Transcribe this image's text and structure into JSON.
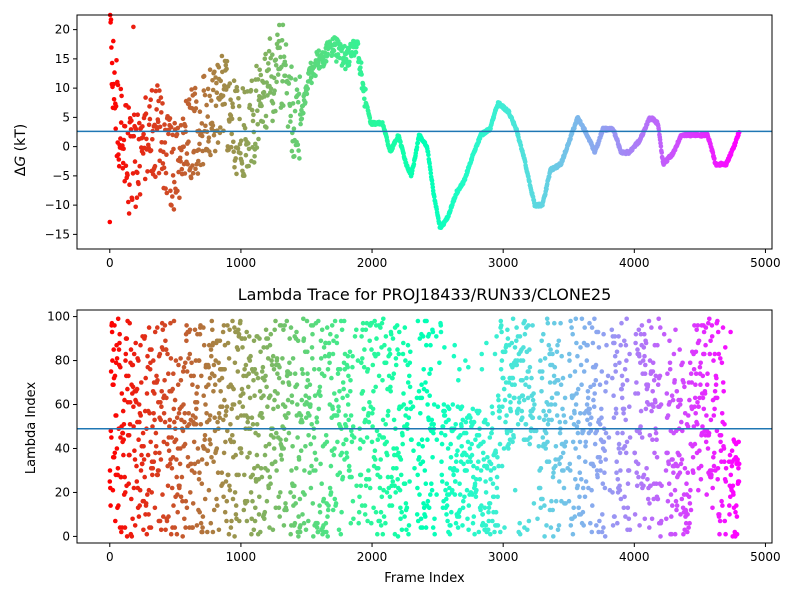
{
  "chart_data": [
    {
      "type": "scatter",
      "title": "",
      "xlabel": "",
      "ylabel": "ΔG (kT)",
      "ylabel_parts": {
        "symbol": "Δ",
        "var": "G",
        "unit": " (kT)"
      },
      "xlim": [
        -250,
        5050
      ],
      "ylim": [
        -17.5,
        22.5
      ],
      "xticks": [
        0,
        1000,
        2000,
        3000,
        4000,
        5000
      ],
      "xtick_labels": [
        "0",
        "1000",
        "2000",
        "3000",
        "4000",
        "5000"
      ],
      "yticks": [
        -15,
        -10,
        -5,
        0,
        5,
        10,
        15,
        20
      ],
      "ytick_labels": [
        "−15",
        "−10",
        "−5",
        "0",
        "5",
        "10",
        "15",
        "20"
      ],
      "hline": 2.6,
      "hline_color": "#1f77b4",
      "colormap": "rainbow",
      "grid": false,
      "n_frames": 4800,
      "x_range": [
        0,
        4800
      ],
      "trace_anchors": [
        [
          0,
          18
        ],
        [
          60,
          5
        ],
        [
          120,
          0
        ],
        [
          200,
          -3
        ],
        [
          280,
          1
        ],
        [
          380,
          3
        ],
        [
          470,
          -4
        ],
        [
          560,
          0
        ],
        [
          660,
          3
        ],
        [
          760,
          5
        ],
        [
          860,
          9
        ],
        [
          960,
          3
        ],
        [
          1060,
          2
        ],
        [
          1160,
          9
        ],
        [
          1260,
          13
        ],
        [
          1340,
          15
        ],
        [
          1400,
          3
        ],
        [
          1460,
          6
        ],
        [
          1520,
          12
        ],
        [
          1600,
          15
        ],
        [
          1700,
          17
        ],
        [
          1800,
          15
        ],
        [
          1880,
          18
        ],
        [
          1940,
          9
        ],
        [
          1990,
          4
        ],
        [
          2080,
          4
        ],
        [
          2140,
          -1
        ],
        [
          2200,
          2
        ],
        [
          2260,
          -3
        ],
        [
          2300,
          -5
        ],
        [
          2360,
          2
        ],
        [
          2420,
          0
        ],
        [
          2470,
          -8
        ],
        [
          2520,
          -14
        ],
        [
          2580,
          -12
        ],
        [
          2640,
          -8
        ],
        [
          2700,
          -6
        ],
        [
          2760,
          -2
        ],
        [
          2830,
          2
        ],
        [
          2900,
          3
        ],
        [
          2960,
          7.5
        ],
        [
          3040,
          6
        ],
        [
          3100,
          3
        ],
        [
          3160,
          -2
        ],
        [
          3240,
          -10
        ],
        [
          3300,
          -10
        ],
        [
          3360,
          -4
        ],
        [
          3440,
          -3
        ],
        [
          3520,
          2
        ],
        [
          3570,
          5
        ],
        [
          3640,
          2
        ],
        [
          3700,
          -1
        ],
        [
          3760,
          3
        ],
        [
          3840,
          3
        ],
        [
          3900,
          -1
        ],
        [
          3960,
          -1
        ],
        [
          4040,
          1
        ],
        [
          4120,
          5
        ],
        [
          4180,
          4
        ],
        [
          4220,
          -3
        ],
        [
          4300,
          -1
        ],
        [
          4360,
          2
        ],
        [
          4430,
          2
        ],
        [
          4560,
          2
        ],
        [
          4620,
          -3
        ],
        [
          4700,
          -3
        ],
        [
          4760,
          0
        ],
        [
          4800,
          2.5
        ]
      ],
      "trace_noise_by_segment": [
        {
          "x_end": 1450,
          "amplitude": 8
        },
        {
          "x_end": 1950,
          "amplitude": 2
        },
        {
          "x_end": 4800,
          "amplitude": 0.25
        }
      ]
    },
    {
      "type": "scatter",
      "title": "Lambda Trace for PROJ18433/RUN33/CLONE25",
      "xlabel": "Frame Index",
      "ylabel": "Lambda Index",
      "xlim": [
        -250,
        5050
      ],
      "ylim": [
        -3,
        103
      ],
      "xticks": [
        0,
        1000,
        2000,
        3000,
        4000,
        5000
      ],
      "xtick_labels": [
        "0",
        "1000",
        "2000",
        "3000",
        "4000",
        "5000"
      ],
      "yticks": [
        0,
        20,
        40,
        60,
        80,
        100
      ],
      "ytick_labels": [
        "0",
        "20",
        "40",
        "60",
        "80",
        "100"
      ],
      "hline": 49,
      "hline_color": "#1f77b4",
      "colormap": "rainbow",
      "grid": false,
      "n_frames": 4800,
      "x_range": [
        0,
        4800
      ],
      "value_range": [
        0,
        99
      ],
      "low_density_bands": [
        [
          1860,
          1900
        ],
        [
          2300,
          2340
        ],
        [
          2480,
          2520
        ],
        [
          3240,
          3270
        ],
        [
          3480,
          3500
        ],
        [
          3790,
          3830
        ],
        [
          3970,
          4000
        ],
        [
          4210,
          4240
        ],
        [
          4700,
          4720
        ]
      ],
      "biased_bands": [
        {
          "x_range": [
            2530,
            2960
          ],
          "y_range": [
            0,
            60
          ]
        },
        {
          "x_range": [
            2970,
            3230
          ],
          "y_range": [
            40,
            99
          ]
        },
        {
          "x_range": [
            4240,
            4440
          ],
          "y_range": [
            0,
            80
          ]
        },
        {
          "x_range": [
            4440,
            4640
          ],
          "y_range": [
            20,
            99
          ]
        },
        {
          "x_range": [
            4720,
            4800
          ],
          "y_range": [
            0,
            45
          ]
        }
      ]
    }
  ]
}
